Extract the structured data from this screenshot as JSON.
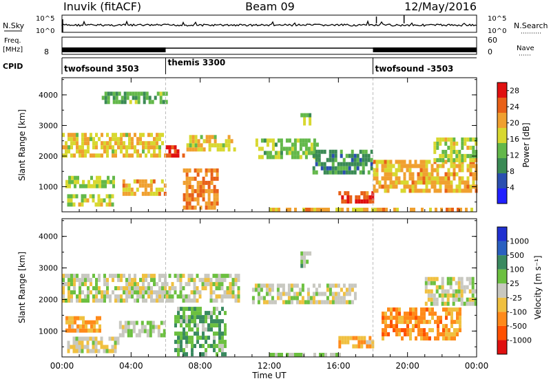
{
  "header": {
    "station": "Inuvik (fitACF)",
    "beam": "Beam 09",
    "date": "12/May/2016"
  },
  "noise_panel": {
    "label_left": "N.Sky",
    "label_right": "N.Search",
    "ticks_left": [
      "10^5",
      "10^0"
    ],
    "ticks_right": [
      "10^5",
      "10^0"
    ]
  },
  "freq_panel": {
    "label_left_1": "Freq.",
    "label_left_2": "[MHz]",
    "label_right": "Nave",
    "ticks_left": [
      "8"
    ],
    "ticks_right": [
      "60",
      "0"
    ]
  },
  "cpid": {
    "label": "CPID",
    "segments": [
      {
        "name": "twofsound 3503",
        "start_hour": 0,
        "end_hour": 6
      },
      {
        "name": "themis 3300",
        "start_hour": 6,
        "end_hour": 18
      },
      {
        "name": "twofsound -3503",
        "start_hour": 18,
        "end_hour": 24
      }
    ]
  },
  "x_axis": {
    "label": "Time UT",
    "ticks": [
      "00:00",
      "04:00",
      "08:00",
      "12:00",
      "16:00",
      "20:00",
      "00:00"
    ],
    "range_hours": [
      0,
      24
    ]
  },
  "chart_data": [
    {
      "type": "heatmap",
      "ylabel": "Slant Range [km]",
      "ylim": [
        180,
        4560
      ],
      "yticks": [
        1000,
        2000,
        3000,
        4000
      ],
      "colorbar": {
        "label": "Power [dB]",
        "ticks": [
          "4",
          "8",
          "12",
          "16",
          "20",
          "24",
          "28"
        ],
        "range": [
          0,
          30
        ]
      },
      "echo_regions": [
        {
          "t0": 0.0,
          "t1": 6.0,
          "r0": 1950,
          "r1": 2700,
          "value": 18
        },
        {
          "t0": 6.0,
          "t1": 7.1,
          "r0": 1950,
          "r1": 2300,
          "value": 27
        },
        {
          "t0": 7.2,
          "t1": 10.0,
          "r0": 2150,
          "r1": 2600,
          "value": 18
        },
        {
          "t0": 11.2,
          "t1": 14.8,
          "r0": 1900,
          "r1": 2500,
          "value": 14
        },
        {
          "t0": 14.5,
          "t1": 18.0,
          "r0": 1400,
          "r1": 2100,
          "value": 10
        },
        {
          "t0": 0.2,
          "t1": 3.0,
          "r0": 950,
          "r1": 1350,
          "value": 15
        },
        {
          "t0": 3.5,
          "t1": 6.0,
          "r0": 700,
          "r1": 1200,
          "value": 20
        },
        {
          "t0": 0.3,
          "t1": 3.0,
          "r0": 350,
          "r1": 700,
          "value": 17
        },
        {
          "t0": 7.0,
          "t1": 9.0,
          "r0": 250,
          "r1": 1500,
          "value": 22
        },
        {
          "t0": 2.3,
          "t1": 6.0,
          "r0": 3700,
          "r1": 4050,
          "value": 12
        },
        {
          "t0": 13.8,
          "t1": 14.4,
          "r0": 3000,
          "r1": 3400,
          "value": 14
        },
        {
          "t0": 16.0,
          "t1": 18.0,
          "r0": 450,
          "r1": 750,
          "value": 25
        },
        {
          "t0": 12.0,
          "t1": 24.0,
          "r0": 180,
          "r1": 280,
          "value": 20
        },
        {
          "t0": 18.0,
          "t1": 24.0,
          "r0": 800,
          "r1": 1800,
          "value": 20
        },
        {
          "t0": 21.5,
          "t1": 24.0,
          "r0": 1800,
          "r1": 2600,
          "value": 16
        }
      ]
    },
    {
      "type": "heatmap",
      "ylabel": "Slant Range [km]",
      "ylim": [
        180,
        4560
      ],
      "yticks": [
        1000,
        2000,
        3000,
        4000
      ],
      "colorbar": {
        "label": "Velocity [m s⁻¹]",
        "ticks": [
          "1000",
          "500",
          "100",
          "25",
          "-25",
          "-100",
          "-500",
          "-1000"
        ],
        "range": [
          -1000,
          1000
        ]
      },
      "echo_regions": [
        {
          "t0": 0.0,
          "t1": 6.0,
          "r0": 1900,
          "r1": 2700,
          "value": 0
        },
        {
          "t0": 6.0,
          "t1": 10.3,
          "r0": 1900,
          "r1": 2700,
          "value": 0
        },
        {
          "t0": 11.0,
          "t1": 17.0,
          "r0": 1850,
          "r1": 2500,
          "value": 0
        },
        {
          "t0": 0.2,
          "t1": 2.2,
          "r0": 950,
          "r1": 1400,
          "value": -300
        },
        {
          "t0": 0.3,
          "t1": 3.3,
          "r0": 300,
          "r1": 800,
          "value": -60
        },
        {
          "t0": 3.3,
          "t1": 6.0,
          "r0": 800,
          "r1": 1300,
          "value": 80
        },
        {
          "t0": 6.5,
          "t1": 9.5,
          "r0": 200,
          "r1": 1700,
          "value": 300
        },
        {
          "t0": 12.0,
          "t1": 16.0,
          "r0": 180,
          "r1": 300,
          "value": 120
        },
        {
          "t0": 16.0,
          "t1": 18.0,
          "r0": 450,
          "r1": 750,
          "value": -300
        },
        {
          "t0": 18.5,
          "t1": 23.0,
          "r0": 700,
          "r1": 1700,
          "value": -400
        },
        {
          "t0": 21.0,
          "t1": 24.0,
          "r0": 1800,
          "r1": 2600,
          "value": 0
        },
        {
          "t0": 13.8,
          "t1": 14.4,
          "r0": 3000,
          "r1": 3400,
          "value": 150
        }
      ]
    }
  ],
  "colors": {
    "power_scale": [
      "#2020ff",
      "#2a4fb0",
      "#3a8a55",
      "#63b84a",
      "#d8d830",
      "#f0a030",
      "#e86018",
      "#e01010"
    ],
    "velocity_scale": [
      "#e01010",
      "#ff5000",
      "#ff8a1a",
      "#f0c040",
      "#c8c8c0",
      "#6cc040",
      "#3a8a60",
      "#2a60c0",
      "#2030d0"
    ]
  }
}
